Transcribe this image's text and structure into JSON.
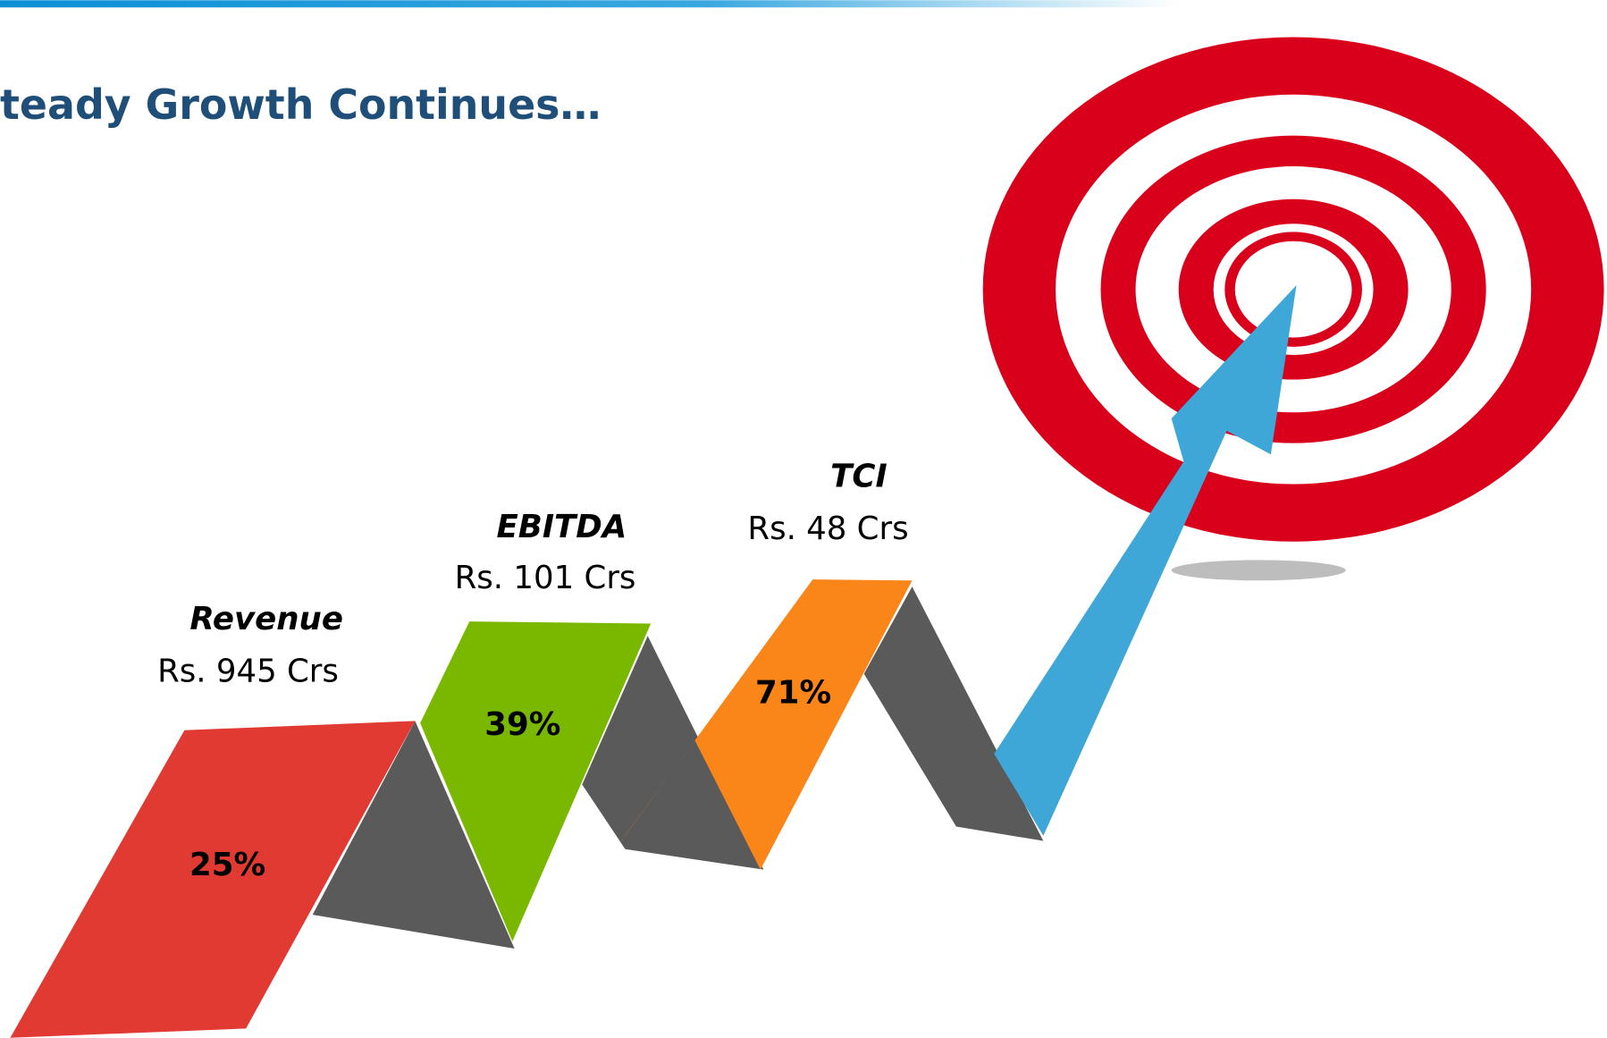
{
  "title": "teady Growth Continues…",
  "items": [
    {
      "label": "Revenue",
      "amount": "Rs. 945 Crs",
      "growth": "25%"
    },
    {
      "label": "EBITDA",
      "amount": "Rs. 101 Crs",
      "growth": "39%"
    },
    {
      "label": "TCI",
      "amount": "Rs. 48 Crs",
      "growth": "71%"
    }
  ]
}
